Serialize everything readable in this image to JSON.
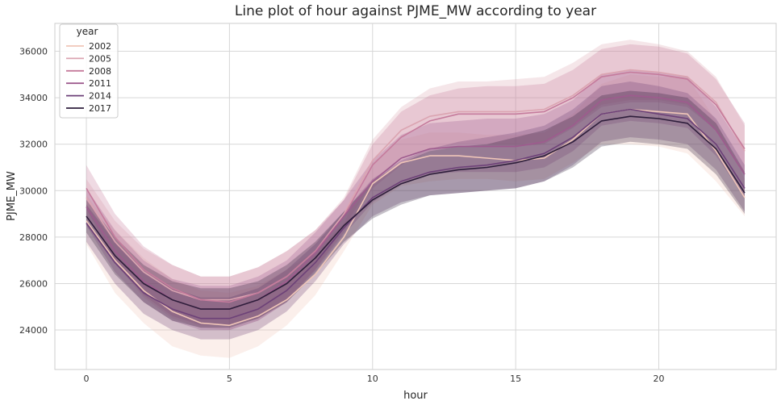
{
  "chart_data": {
    "type": "line",
    "title": "Line plot of hour against PJME_MW according to year",
    "xlabel": "hour",
    "ylabel": "PJME_MW",
    "xlim": [
      -1.1,
      24.1
    ],
    "ylim": [
      22300,
      37200
    ],
    "xticks": [
      0,
      5,
      10,
      15,
      20
    ],
    "yticks": [
      24000,
      26000,
      28000,
      30000,
      32000,
      34000,
      36000
    ],
    "grid": true,
    "legend": {
      "title": "year",
      "position": "top-left"
    },
    "x": [
      0,
      1,
      2,
      3,
      4,
      5,
      6,
      7,
      8,
      9,
      10,
      11,
      12,
      13,
      14,
      15,
      16,
      17,
      18,
      19,
      20,
      21,
      22,
      23
    ],
    "series": [
      {
        "name": "2002",
        "color": "#f0c6b8",
        "values": [
          28700,
          27000,
          25700,
          24800,
          24300,
          24200,
          24600,
          25300,
          26400,
          28000,
          30300,
          31200,
          31500,
          31500,
          31400,
          31300,
          31400,
          32200,
          33300,
          33500,
          33400,
          33300,
          31700,
          29700
        ],
        "ci_low": [
          27700,
          25600,
          24300,
          23300,
          22900,
          22800,
          23300,
          24200,
          25500,
          27400,
          29400,
          30200,
          30400,
          30500,
          30500,
          30400,
          30500,
          31200,
          32000,
          32000,
          31900,
          31600,
          30400,
          28900
        ],
        "ci_high": [
          29800,
          28300,
          27100,
          26200,
          25700,
          25600,
          25900,
          26600,
          27400,
          28600,
          31200,
          32200,
          32500,
          32500,
          32400,
          32400,
          32500,
          33300,
          34600,
          35000,
          34900,
          34900,
          33000,
          30500
        ]
      },
      {
        "name": "2005",
        "color": "#dba4b1",
        "values": [
          29700,
          27800,
          26500,
          25700,
          25300,
          25300,
          25600,
          26300,
          27400,
          29000,
          31300,
          32600,
          33200,
          33400,
          33400,
          33400,
          33500,
          34100,
          35000,
          35200,
          35100,
          34900,
          33800,
          31700
        ],
        "ci_low": [
          29000,
          26900,
          25400,
          24500,
          24100,
          24000,
          24400,
          25200,
          26600,
          28400,
          30400,
          31400,
          31800,
          32000,
          32000,
          32000,
          32100,
          32800,
          33700,
          33900,
          33900,
          33700,
          32600,
          30600
        ],
        "ci_high": [
          30500,
          28700,
          27500,
          26800,
          26300,
          26300,
          26700,
          27400,
          28300,
          29700,
          32200,
          33600,
          34400,
          34700,
          34700,
          34800,
          34900,
          35500,
          36300,
          36500,
          36300,
          36000,
          34900,
          32800
        ]
      },
      {
        "name": "2008",
        "color": "#c57b9c",
        "values": [
          30100,
          28000,
          26600,
          25800,
          25300,
          25200,
          25600,
          26300,
          27400,
          28900,
          31100,
          32300,
          33000,
          33300,
          33300,
          33300,
          33400,
          34000,
          34900,
          35100,
          35000,
          34800,
          33700,
          31800
        ],
        "ci_low": [
          29200,
          27000,
          25500,
          24600,
          24200,
          24200,
          24500,
          25300,
          26600,
          28200,
          30100,
          31100,
          31700,
          31900,
          31900,
          31900,
          32000,
          32700,
          33600,
          33800,
          33800,
          33600,
          32600,
          30700
        ],
        "ci_high": [
          31100,
          29000,
          27600,
          26800,
          26300,
          26300,
          26700,
          27400,
          28300,
          29600,
          32000,
          33400,
          34100,
          34400,
          34500,
          34500,
          34600,
          35200,
          36100,
          36300,
          36200,
          35900,
          34800,
          32900
        ]
      },
      {
        "name": "2011",
        "color": "#9e5b8e",
        "values": [
          29300,
          27400,
          26100,
          25300,
          24900,
          24900,
          25300,
          26100,
          27300,
          28900,
          30400,
          31400,
          31800,
          31900,
          31900,
          31900,
          32100,
          32800,
          33900,
          34100,
          34000,
          33800,
          32600,
          30700
        ],
        "ci_low": [
          28500,
          26500,
          25200,
          24400,
          24000,
          24000,
          24400,
          25200,
          26500,
          28100,
          29500,
          30300,
          30700,
          30800,
          30800,
          30800,
          31000,
          31700,
          32800,
          33000,
          32900,
          32700,
          31500,
          29700
        ],
        "ci_high": [
          30100,
          28300,
          27000,
          26200,
          25900,
          25900,
          26300,
          27000,
          28200,
          29600,
          31300,
          32400,
          32900,
          33000,
          33100,
          33100,
          33300,
          33900,
          35000,
          35200,
          35100,
          34900,
          33600,
          31700
        ]
      },
      {
        "name": "2014",
        "color": "#6d4178",
        "values": [
          28600,
          26900,
          25600,
          24900,
          24500,
          24500,
          24900,
          25700,
          26900,
          28400,
          29700,
          30400,
          30800,
          31000,
          31100,
          31300,
          31600,
          32300,
          33300,
          33500,
          33300,
          33100,
          32000,
          30100
        ],
        "ci_low": [
          27800,
          26000,
          24700,
          24000,
          23600,
          23600,
          24000,
          24800,
          26100,
          27700,
          28900,
          29500,
          29800,
          29900,
          30000,
          30100,
          30400,
          31100,
          32100,
          32300,
          32200,
          32000,
          30900,
          29100
        ],
        "ci_high": [
          29400,
          27800,
          26500,
          25800,
          25400,
          25400,
          25800,
          26600,
          27700,
          29100,
          30500,
          31300,
          31800,
          32100,
          32300,
          32500,
          32800,
          33500,
          34500,
          34700,
          34500,
          34200,
          33100,
          31100
        ]
      },
      {
        "name": "2017",
        "color": "#2e1e3b",
        "values": [
          28900,
          27200,
          26000,
          25300,
          24900,
          24900,
          25300,
          26000,
          27100,
          28500,
          29600,
          30300,
          30700,
          30900,
          31000,
          31200,
          31500,
          32100,
          33000,
          33200,
          33100,
          32900,
          31800,
          29900
        ],
        "ci_low": [
          28200,
          26400,
          25200,
          24400,
          24100,
          24100,
          24500,
          25200,
          26400,
          27800,
          28800,
          29400,
          29800,
          29900,
          30000,
          30100,
          30400,
          31000,
          31900,
          32100,
          32000,
          31800,
          30700,
          29000
        ],
        "ci_high": [
          29600,
          28000,
          26800,
          26100,
          25800,
          25800,
          26100,
          26800,
          27800,
          29100,
          30400,
          31200,
          31700,
          31900,
          32000,
          32300,
          32600,
          33200,
          34100,
          34300,
          34200,
          34000,
          32900,
          30800
        ]
      }
    ]
  }
}
